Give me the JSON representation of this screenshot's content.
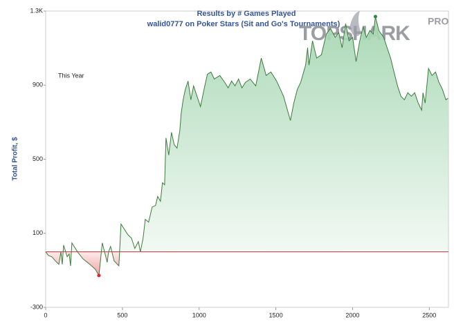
{
  "chart_data": {
    "type": "area",
    "title": "Results by # Games Played",
    "subtitle": "walid0777 on Poker Stars (Sit and Go's Tournaments)",
    "y_label": "Total Profit, $",
    "annotation": "This Year",
    "logo": {
      "text": "TOPSHARK",
      "badge": "PRO"
    },
    "x": [
      0,
      18,
      40,
      63,
      86,
      99,
      108,
      117,
      140,
      153,
      162,
      171,
      207,
      243,
      288,
      324,
      347,
      369,
      401,
      410,
      423,
      446,
      477,
      491,
      536,
      559,
      581,
      604,
      617,
      635,
      649,
      671,
      694,
      716,
      730,
      748,
      761,
      775,
      784,
      802,
      820,
      838,
      856,
      874,
      883,
      896,
      910,
      928,
      946,
      964,
      986,
      1009,
      1032,
      1054,
      1077,
      1099,
      1135,
      1167,
      1189,
      1212,
      1234,
      1257,
      1279,
      1302,
      1333,
      1369,
      1405,
      1437,
      1468,
      1505,
      1550,
      1595,
      1617,
      1640,
      1662,
      1694,
      1707,
      1716,
      1739,
      1766,
      1797,
      1829,
      1856,
      1887,
      1910,
      1932,
      1955,
      1977,
      2000,
      2023,
      2045,
      2068,
      2090,
      2113,
      2135,
      2149,
      2171,
      2203,
      2225,
      2248,
      2270,
      2293,
      2315,
      2338,
      2360,
      2383,
      2405,
      2428,
      2450,
      2459,
      2473,
      2495,
      2518,
      2541,
      2563,
      2586,
      2608,
      2622
    ],
    "series": [
      {
        "name": "Total Profit",
        "color": "#3d7a3d",
        "values": [
          0,
          -20,
          -27,
          -49,
          -68,
          0,
          -68,
          36,
          -27,
          -12,
          -76,
          48,
          0,
          -38,
          -68,
          -95,
          -128,
          48,
          -57,
          0,
          29,
          -49,
          -76,
          150,
          92,
          74,
          18,
          55,
          0,
          74,
          175,
          160,
          242,
          250,
          299,
          273,
          373,
          362,
          615,
          522,
          645,
          578,
          560,
          653,
          747,
          821,
          877,
          922,
          821,
          896,
          840,
          784,
          877,
          959,
          971,
          933,
          952,
          915,
          885,
          922,
          896,
          933,
          885,
          915,
          933,
          896,
          1046,
          952,
          971,
          922,
          840,
          709,
          803,
          877,
          915,
          1008,
          1102,
          1008,
          1139,
          1046,
          1064,
          1176,
          1206,
          1158,
          1184,
          1102,
          1232,
          1139,
          1158,
          1027,
          1132,
          1214,
          1158,
          1195,
          1176,
          1270,
          1195,
          1158,
          1102,
          1046,
          971,
          896,
          840,
          821,
          859,
          840,
          859,
          803,
          765,
          859,
          803,
          990,
          952,
          971,
          915,
          877,
          821,
          829
        ]
      }
    ],
    "xlim": [
      0,
      2625
    ],
    "xticks": [
      0,
      500,
      1000,
      1500,
      2000,
      2500
    ],
    "ylim": [
      -300,
      1300
    ],
    "yticks": [
      -300,
      100,
      500,
      900,
      {
        "value": 1300,
        "label": "1.3K"
      }
    ],
    "reference_line": 0,
    "reference_color": "#c8464b",
    "positive_fill": "#a9d8b5",
    "negative_fill": "#ee7b80",
    "min_marker_color": "#e0262c",
    "max_marker_color": "#2a8a3a"
  }
}
